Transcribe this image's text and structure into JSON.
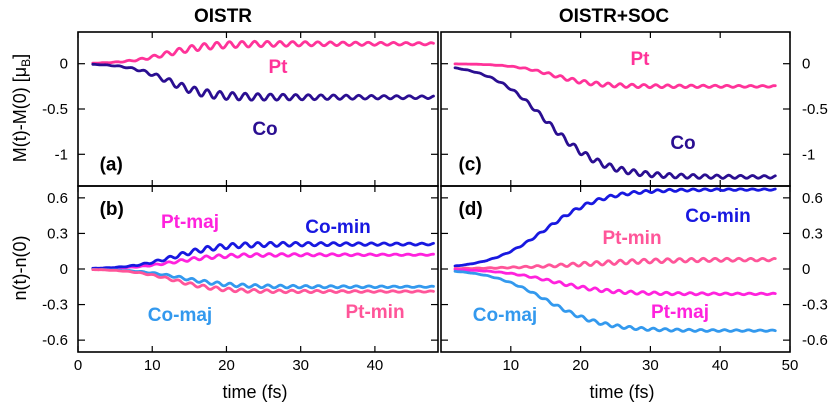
{
  "colors": {
    "Pt": "#ff3399",
    "Co": "#2a0e91",
    "Pt-maj": "#ff22dd",
    "Pt-min": "#ff5599",
    "Co-min": "#1818e0",
    "Co-maj": "#3399ee"
  },
  "chart_data": [
    {
      "type": "line",
      "panel": "a",
      "label": "(a)",
      "title": "OISTR",
      "xlabel": "",
      "ylabel": "M(t)-M(0) [μ",
      "ylabel_sub": "B",
      "ylabel_close": "]",
      "xlim": [
        0,
        48.5
      ],
      "ylim": [
        -1.35,
        0.35
      ],
      "series": [
        {
          "name": "Pt",
          "label": "Pt",
          "t0": 12,
          "tau": 2.8,
          "final": 0.22,
          "osc": 0.05,
          "period": 1.7,
          "phase": 0.5
        },
        {
          "name": "Co",
          "label": "Co",
          "t0": 12,
          "tau": 2.6,
          "final": -0.37,
          "osc": 0.06,
          "period": 1.7,
          "phase": 0.0
        }
      ]
    },
    {
      "type": "line",
      "panel": "b",
      "label": "(b)",
      "xlabel": "time (fs)",
      "ylabel": "n(t)-n(0)",
      "xlim": [
        0,
        48.5
      ],
      "ylim": [
        -0.7,
        0.7
      ],
      "series": [
        {
          "name": "Pt-maj",
          "label": "Pt-maj",
          "t0": 13,
          "tau": 3,
          "final": 0.12,
          "osc": 0.02,
          "period": 1.7,
          "phase": 0.2
        },
        {
          "name": "Co-min",
          "label": "Co-min",
          "t0": 13,
          "tau": 3,
          "final": 0.21,
          "osc": 0.03,
          "period": 1.7,
          "phase": 0.0
        },
        {
          "name": "Co-maj",
          "label": "Co-maj",
          "t0": 14,
          "tau": 3.2,
          "final": -0.15,
          "osc": 0.02,
          "period": 1.7,
          "phase": 0.4
        },
        {
          "name": "Pt-min",
          "label": "Pt-min",
          "t0": 13,
          "tau": 3,
          "final": -0.19,
          "osc": 0.02,
          "period": 1.7,
          "phase": 0.6
        }
      ]
    },
    {
      "type": "line",
      "panel": "c",
      "label": "(c)",
      "title": "OISTR+SOC",
      "xlabel": "",
      "xlim": [
        0,
        50
      ],
      "ylim": [
        -1.35,
        0.35
      ],
      "series": [
        {
          "name": "Pt",
          "label": "Pt",
          "t0": 16,
          "tau": 3,
          "final": -0.25,
          "osc": 0.03,
          "period": 1.7,
          "phase": 0.3
        },
        {
          "name": "Co",
          "label": "Co",
          "t0": 15,
          "tau": 4,
          "final": -1.25,
          "osc": 0.05,
          "period": 1.7,
          "phase": 0.0
        }
      ]
    },
    {
      "type": "line",
      "panel": "d",
      "label": "(d)",
      "xlabel": "time (fs)",
      "xlim": [
        0,
        50
      ],
      "ylim": [
        -0.7,
        0.7
      ],
      "series": [
        {
          "name": "Co-min",
          "label": "Co-min",
          "t0": 15,
          "tau": 4,
          "final": 0.67,
          "osc": 0.02,
          "period": 1.7,
          "phase": 0.0
        },
        {
          "name": "Pt-min",
          "label": "Pt-min",
          "t0": 20,
          "tau": 6,
          "final": 0.08,
          "osc": 0.03,
          "period": 1.7,
          "phase": 0.3
        },
        {
          "name": "Pt-maj",
          "label": "Pt-maj",
          "t0": 16,
          "tau": 4,
          "final": -0.21,
          "osc": 0.02,
          "period": 1.7,
          "phase": 0.5
        },
        {
          "name": "Co-maj",
          "label": "Co-maj",
          "t0": 15,
          "tau": 4,
          "final": -0.52,
          "osc": 0.02,
          "period": 1.7,
          "phase": 0.7
        }
      ]
    }
  ],
  "axes": {
    "top_yticks": [
      "0",
      "-0.5",
      "-1"
    ],
    "top_ytick_values": [
      0,
      -0.5,
      -1
    ],
    "bottom_yticks": [
      "0.6",
      "0.3",
      "0",
      "-0.3",
      "-0.6"
    ],
    "bottom_ytick_values": [
      0.6,
      0.3,
      0,
      -0.3,
      -0.6
    ],
    "left_xticks": [
      "0",
      "10",
      "20",
      "30",
      "40"
    ],
    "left_xtick_values": [
      0,
      10,
      20,
      30,
      40
    ],
    "right_xticks": [
      "10",
      "20",
      "30",
      "40",
      "50"
    ],
    "right_xtick_values": [
      10,
      20,
      30,
      40,
      50
    ]
  }
}
